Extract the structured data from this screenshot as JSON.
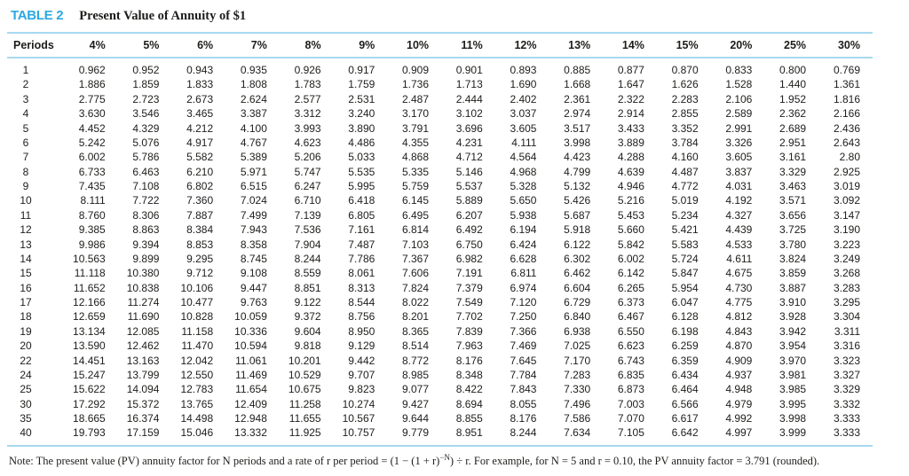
{
  "header": {
    "label": "TABLE 2",
    "title": "Present Value of Annuity of $1"
  },
  "colors": {
    "accent": "#2ba9e0",
    "rule": "#a7d9f0",
    "ink": "#1d1d1b"
  },
  "table": {
    "period_header": "Periods",
    "rate_headers": [
      "4%",
      "5%",
      "6%",
      "7%",
      "8%",
      "9%",
      "10%",
      "11%",
      "12%",
      "13%",
      "14%",
      "15%",
      "20%",
      "25%",
      "30%"
    ],
    "rows": [
      {
        "period": "1",
        "values": [
          "0.962",
          "0.952",
          "0.943",
          "0.935",
          "0.926",
          "0.917",
          "0.909",
          "0.901",
          "0.893",
          "0.885",
          "0.877",
          "0.870",
          "0.833",
          "0.800",
          "0.769"
        ]
      },
      {
        "period": "2",
        "values": [
          "1.886",
          "1.859",
          "1.833",
          "1.808",
          "1.783",
          "1.759",
          "1.736",
          "1.713",
          "1.690",
          "1.668",
          "1.647",
          "1.626",
          "1.528",
          "1.440",
          "1.361"
        ]
      },
      {
        "period": "3",
        "values": [
          "2.775",
          "2.723",
          "2.673",
          "2.624",
          "2.577",
          "2.531",
          "2.487",
          "2.444",
          "2.402",
          "2.361",
          "2.322",
          "2.283",
          "2.106",
          "1.952",
          "1.816"
        ]
      },
      {
        "period": "4",
        "values": [
          "3.630",
          "3.546",
          "3.465",
          "3.387",
          "3.312",
          "3.240",
          "3.170",
          "3.102",
          "3.037",
          "2.974",
          "2.914",
          "2.855",
          "2.589",
          "2.362",
          "2.166"
        ]
      },
      {
        "period": "5",
        "values": [
          "4.452",
          "4.329",
          "4.212",
          "4.100",
          "3.993",
          "3.890",
          "3.791",
          "3.696",
          "3.605",
          "3.517",
          "3.433",
          "3.352",
          "2.991",
          "2.689",
          "2.436"
        ]
      },
      {
        "period": "6",
        "values": [
          "5.242",
          "5.076",
          "4.917",
          "4.767",
          "4.623",
          "4.486",
          "4.355",
          "4.231",
          "4.111",
          "3.998",
          "3.889",
          "3.784",
          "3.326",
          "2.951",
          "2.643"
        ]
      },
      {
        "period": "7",
        "values": [
          "6.002",
          "5.786",
          "5.582",
          "5.389",
          "5.206",
          "5.033",
          "4.868",
          "4.712",
          "4.564",
          "4.423",
          "4.288",
          "4.160",
          "3.605",
          "3.161",
          "2.80"
        ]
      },
      {
        "period": "8",
        "values": [
          "6.733",
          "6.463",
          "6.210",
          "5.971",
          "5.747",
          "5.535",
          "5.335",
          "5.146",
          "4.968",
          "4.799",
          "4.639",
          "4.487",
          "3.837",
          "3.329",
          "2.925"
        ]
      },
      {
        "period": "9",
        "values": [
          "7.435",
          "7.108",
          "6.802",
          "6.515",
          "6.247",
          "5.995",
          "5.759",
          "5.537",
          "5.328",
          "5.132",
          "4.946",
          "4.772",
          "4.031",
          "3.463",
          "3.019"
        ]
      },
      {
        "period": "10",
        "values": [
          "8.111",
          "7.722",
          "7.360",
          "7.024",
          "6.710",
          "6.418",
          "6.145",
          "5.889",
          "5.650",
          "5.426",
          "5.216",
          "5.019",
          "4.192",
          "3.571",
          "3.092"
        ]
      },
      {
        "period": "11",
        "values": [
          "8.760",
          "8.306",
          "7.887",
          "7.499",
          "7.139",
          "6.805",
          "6.495",
          "6.207",
          "5.938",
          "5.687",
          "5.453",
          "5.234",
          "4.327",
          "3.656",
          "3.147"
        ]
      },
      {
        "period": "12",
        "values": [
          "9.385",
          "8.863",
          "8.384",
          "7.943",
          "7.536",
          "7.161",
          "6.814",
          "6.492",
          "6.194",
          "5.918",
          "5.660",
          "5.421",
          "4.439",
          "3.725",
          "3.190"
        ]
      },
      {
        "period": "13",
        "values": [
          "9.986",
          "9.394",
          "8.853",
          "8.358",
          "7.904",
          "7.487",
          "7.103",
          "6.750",
          "6.424",
          "6.122",
          "5.842",
          "5.583",
          "4.533",
          "3.780",
          "3.223"
        ]
      },
      {
        "period": "14",
        "values": [
          "10.563",
          "9.899",
          "9.295",
          "8.745",
          "8.244",
          "7.786",
          "7.367",
          "6.982",
          "6.628",
          "6.302",
          "6.002",
          "5.724",
          "4.611",
          "3.824",
          "3.249"
        ]
      },
      {
        "period": "15",
        "values": [
          "11.118",
          "10.380",
          "9.712",
          "9.108",
          "8.559",
          "8.061",
          "7.606",
          "7.191",
          "6.811",
          "6.462",
          "6.142",
          "5.847",
          "4.675",
          "3.859",
          "3.268"
        ]
      },
      {
        "period": "16",
        "values": [
          "11.652",
          "10.838",
          "10.106",
          "9.447",
          "8.851",
          "8.313",
          "7.824",
          "7.379",
          "6.974",
          "6.604",
          "6.265",
          "5.954",
          "4.730",
          "3.887",
          "3.283"
        ]
      },
      {
        "period": "17",
        "values": [
          "12.166",
          "11.274",
          "10.477",
          "9.763",
          "9.122",
          "8.544",
          "8.022",
          "7.549",
          "7.120",
          "6.729",
          "6.373",
          "6.047",
          "4.775",
          "3.910",
          "3.295"
        ]
      },
      {
        "period": "18",
        "values": [
          "12.659",
          "11.690",
          "10.828",
          "10.059",
          "9.372",
          "8.756",
          "8.201",
          "7.702",
          "7.250",
          "6.840",
          "6.467",
          "6.128",
          "4.812",
          "3.928",
          "3.304"
        ]
      },
      {
        "period": "19",
        "values": [
          "13.134",
          "12.085",
          "11.158",
          "10.336",
          "9.604",
          "8.950",
          "8.365",
          "7.839",
          "7.366",
          "6.938",
          "6.550",
          "6.198",
          "4.843",
          "3.942",
          "3.311"
        ]
      },
      {
        "period": "20",
        "values": [
          "13.590",
          "12.462",
          "11.470",
          "10.594",
          "9.818",
          "9.129",
          "8.514",
          "7.963",
          "7.469",
          "7.025",
          "6.623",
          "6.259",
          "4.870",
          "3.954",
          "3.316"
        ]
      },
      {
        "period": "22",
        "values": [
          "14.451",
          "13.163",
          "12.042",
          "11.061",
          "10.201",
          "9.442",
          "8.772",
          "8.176",
          "7.645",
          "7.170",
          "6.743",
          "6.359",
          "4.909",
          "3.970",
          "3.323"
        ]
      },
      {
        "period": "24",
        "values": [
          "15.247",
          "13.799",
          "12.550",
          "11.469",
          "10.529",
          "9.707",
          "8.985",
          "8.348",
          "7.784",
          "7.283",
          "6.835",
          "6.434",
          "4.937",
          "3.981",
          "3.327"
        ]
      },
      {
        "period": "25",
        "values": [
          "15.622",
          "14.094",
          "12.783",
          "11.654",
          "10.675",
          "9.823",
          "9.077",
          "8.422",
          "7.843",
          "7.330",
          "6.873",
          "6.464",
          "4.948",
          "3.985",
          "3.329"
        ]
      },
      {
        "period": "30",
        "values": [
          "17.292",
          "15.372",
          "13.765",
          "12.409",
          "11.258",
          "10.274",
          "9.427",
          "8.694",
          "8.055",
          "7.496",
          "7.003",
          "6.566",
          "4.979",
          "3.995",
          "3.332"
        ]
      },
      {
        "period": "35",
        "values": [
          "18.665",
          "16.374",
          "14.498",
          "12.948",
          "11.655",
          "10.567",
          "9.644",
          "8.855",
          "8.176",
          "7.586",
          "7.070",
          "6.617",
          "4.992",
          "3.998",
          "3.333"
        ]
      },
      {
        "period": "40",
        "values": [
          "19.793",
          "17.159",
          "15.046",
          "13.332",
          "11.925",
          "10.757",
          "9.779",
          "8.951",
          "8.244",
          "7.634",
          "7.105",
          "6.642",
          "4.997",
          "3.999",
          "3.333"
        ]
      }
    ]
  },
  "note": {
    "prefix": "Note: The present value (PV) annuity factor for N periods and a rate of r per period = (1 − (1 + r)",
    "superscript": "−N",
    "suffix": ") ÷ r. For example, for N = 5 and r = 0.10, the PV annuity factor = 3.791 (rounded)."
  }
}
